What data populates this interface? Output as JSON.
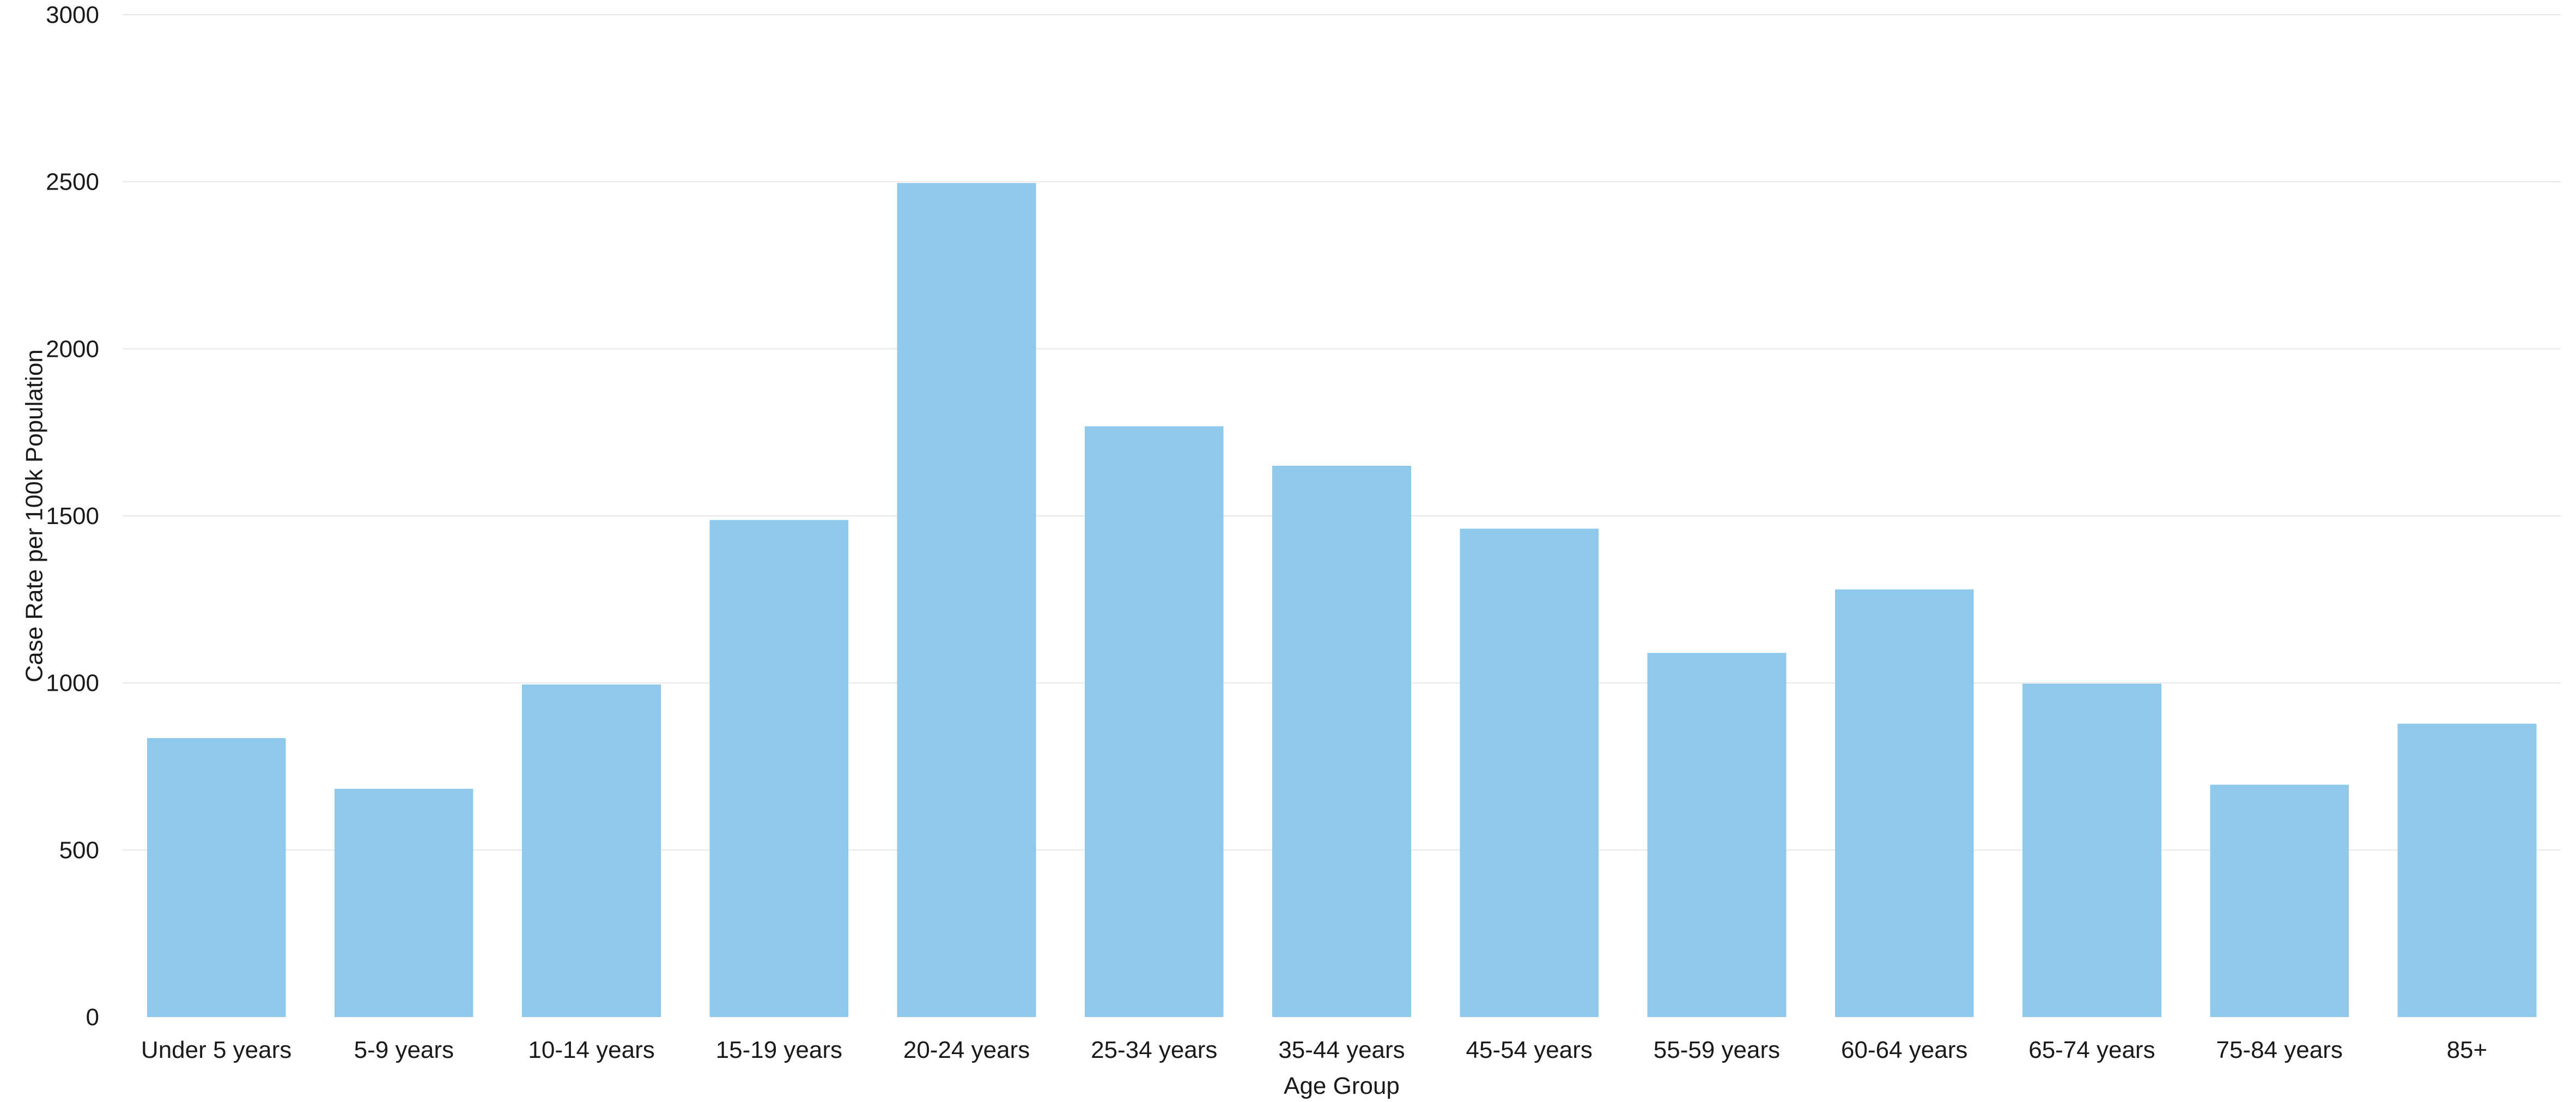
{
  "chart_data": {
    "type": "bar",
    "title": "",
    "xlabel": "Age Group",
    "ylabel": "Case Rate per 100k Population",
    "categories": [
      "Under 5 years",
      "5-9 years",
      "10-14 years",
      "15-19 years",
      "20-24 years",
      "25-34 years",
      "35-44 years",
      "45-54 years",
      "55-59 years",
      "60-64 years",
      "65-74 years",
      "75-84 years",
      "85+"
    ],
    "values": [
      835,
      683,
      995,
      1488,
      2496,
      1768,
      1650,
      1462,
      1090,
      1280,
      998,
      695,
      878
    ],
    "ylim": [
      0,
      3000
    ],
    "yticks": [
      0,
      500,
      1000,
      1500,
      2000,
      2500,
      3000
    ],
    "grid": true,
    "legend": "none",
    "bar_color": "#8ec9ec"
  }
}
